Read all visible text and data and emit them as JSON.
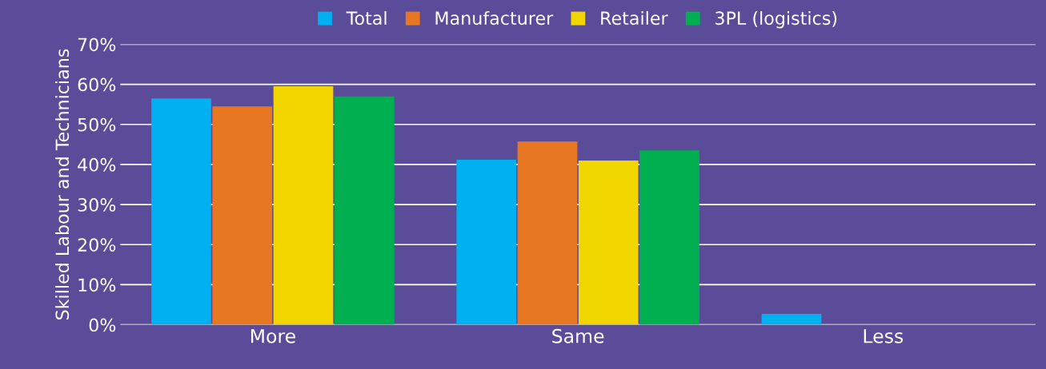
{
  "chart_data": {
    "type": "bar",
    "ylabel": "Skilled Labour and Technicians",
    "categories": [
      "More",
      "Same",
      "Less"
    ],
    "series": [
      {
        "name": "Total",
        "color": "#00b0f0",
        "values": [
          56.5,
          41.2,
          2.7
        ]
      },
      {
        "name": "Manufacturer",
        "color": "#e87722",
        "values": [
          54.5,
          45.7,
          0
        ]
      },
      {
        "name": "Retailer",
        "color": "#f2d600",
        "values": [
          59.5,
          41,
          0
        ]
      },
      {
        "name": "3PL (logistics)",
        "color": "#00b050",
        "values": [
          57,
          43.5,
          0
        ]
      }
    ],
    "ylim": [
      0,
      70
    ],
    "yticks": [
      {
        "value": 0,
        "label": "0%"
      },
      {
        "value": 10,
        "label": "10%"
      },
      {
        "value": 20,
        "label": "20%"
      },
      {
        "value": 30,
        "label": "30%"
      },
      {
        "value": 40,
        "label": "40%"
      },
      {
        "value": 50,
        "label": "50%"
      },
      {
        "value": 60,
        "label": "60%"
      },
      {
        "value": 70,
        "label": "70%"
      }
    ],
    "grid": "y",
    "legend": "top"
  }
}
